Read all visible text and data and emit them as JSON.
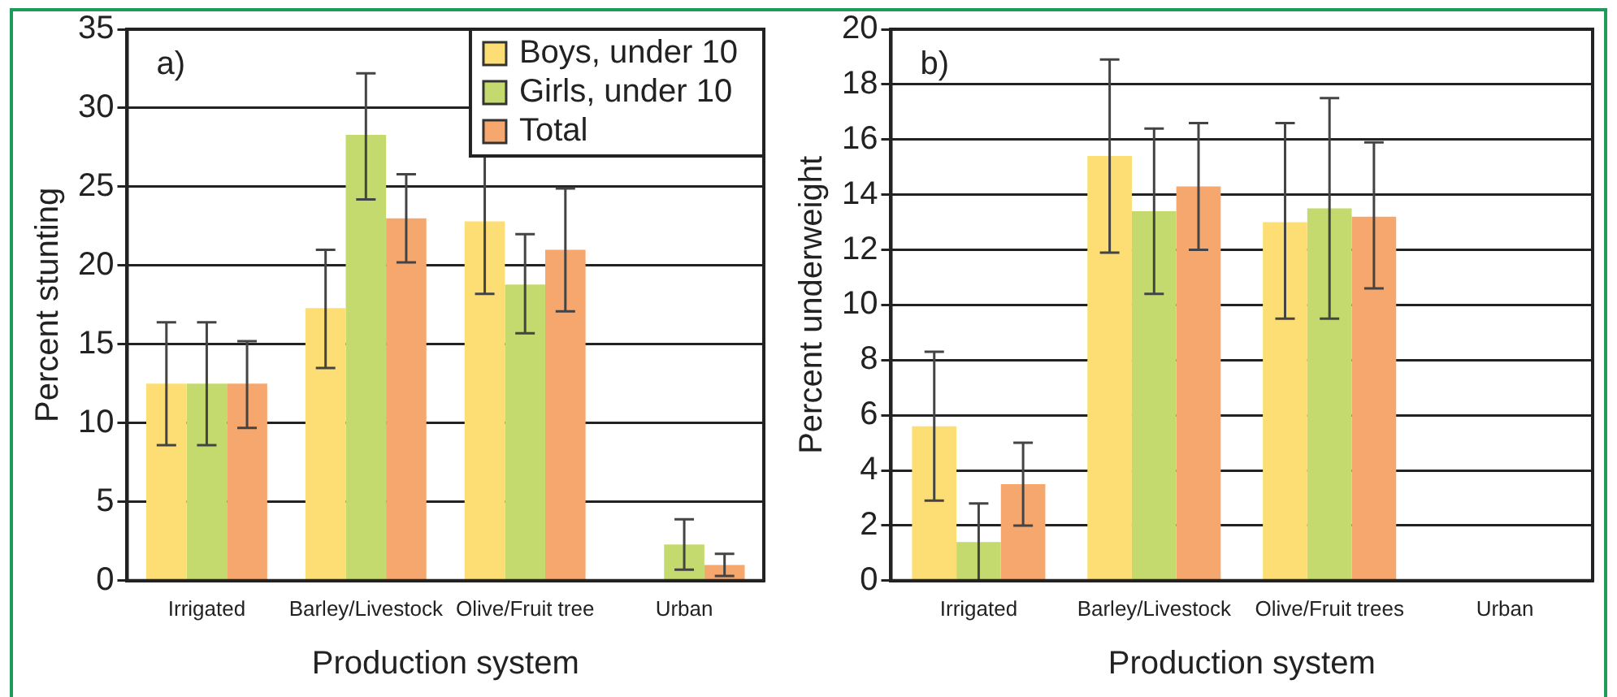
{
  "chart_data": [
    {
      "type": "bar",
      "annotations": [
        "a)"
      ],
      "xlabel": "Production system",
      "ylabel": "Percent stunting",
      "categories": [
        "Irrigated",
        "Barley/Livestock",
        "Olive/Fruit tree",
        "Urban"
      ],
      "ylim": [
        0,
        35
      ],
      "yticks": [
        0,
        5,
        10,
        15,
        20,
        25,
        30,
        35
      ],
      "grid": "y",
      "legend": "top right",
      "series": [
        {
          "name": "Boys, under 10",
          "color": "#fdde75",
          "values": [
            12.5,
            17.3,
            22.8,
            null
          ],
          "errors": [
            [
              8.6,
              16.4
            ],
            [
              13.5,
              21
            ],
            [
              18.2,
              27.4
            ],
            null
          ]
        },
        {
          "name": "Girls, under 10",
          "color": "#c5da6e",
          "values": [
            12.5,
            28.3,
            18.8,
            2.3
          ],
          "errors": [
            [
              8.6,
              16.4
            ],
            [
              24.2,
              32.2
            ],
            [
              15.7,
              22
            ],
            [
              0.7,
              3.9
            ]
          ]
        },
        {
          "name": "Total",
          "color": "#f6a76d",
          "values": [
            12.5,
            23,
            21,
            1.0
          ],
          "errors": [
            [
              9.7,
              15.2
            ],
            [
              20.2,
              25.8
            ],
            [
              17.1,
              24.9
            ],
            [
              0.3,
              1.7
            ]
          ]
        }
      ]
    },
    {
      "type": "bar",
      "annotations": [
        "b)"
      ],
      "xlabel": "Production system",
      "ylabel": "Percent underweight",
      "categories": [
        "Irrigated",
        "Barley/Livestock",
        "Olive/Fruit trees",
        "Urban"
      ],
      "ylim": [
        0,
        20
      ],
      "yticks": [
        0,
        2,
        4,
        6,
        8,
        10,
        12,
        14,
        16,
        18,
        20
      ],
      "grid": "y",
      "series": [
        {
          "color": "#fdde75",
          "values": [
            5.6,
            15.4,
            13.0,
            null
          ],
          "errors": [
            [
              2.9,
              8.3
            ],
            [
              11.9,
              18.9
            ],
            [
              9.5,
              16.6
            ],
            null
          ]
        },
        {
          "color": "#c5da6e",
          "values": [
            1.4,
            13.4,
            13.5,
            null
          ],
          "errors": [
            [
              0,
              2.8
            ],
            [
              10.4,
              16.4
            ],
            [
              9.5,
              17.5
            ],
            null
          ]
        },
        {
          "color": "#f6a76d",
          "values": [
            3.5,
            14.3,
            13.2,
            null
          ],
          "errors": [
            [
              2,
              5
            ],
            [
              12,
              16.6
            ],
            [
              10.6,
              15.9
            ],
            null
          ]
        }
      ]
    }
  ]
}
